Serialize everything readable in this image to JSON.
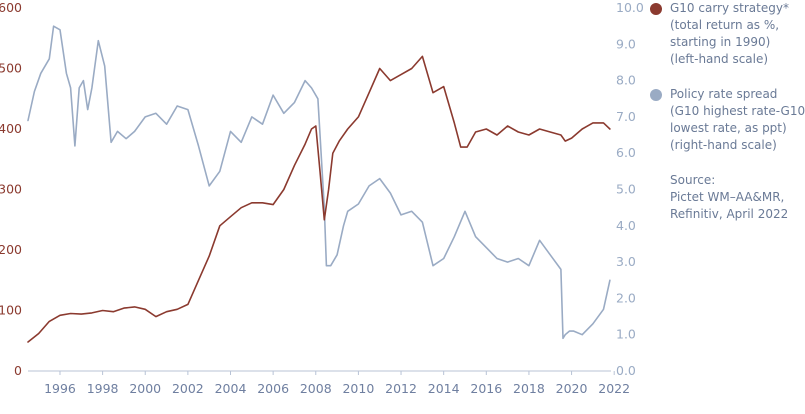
{
  "chart_data": {
    "type": "line",
    "title": "",
    "xlabel": "",
    "left_axis": {
      "ylim": [
        0,
        600
      ],
      "ticks": [
        "0",
        "100",
        "200",
        "300",
        "400",
        "500",
        "600"
      ],
      "color": "#8b3a2f"
    },
    "right_axis": {
      "ylim": [
        0,
        10
      ],
      "ticks": [
        "0.0",
        "1.0",
        "2.0",
        "3.0",
        "4.0",
        "5.0",
        "6.0",
        "7.0",
        "8.0",
        "9.0",
        "10.0"
      ],
      "color": "#9aabc4"
    },
    "x_ticks": [
      "1996",
      "1998",
      "2000",
      "2002",
      "2004",
      "2006",
      "2008",
      "2010",
      "2012",
      "2014",
      "2016",
      "2018",
      "2020",
      "2022"
    ],
    "xlim": [
      1995.0,
      2022.35
    ],
    "grid": false,
    "legend_position": "right",
    "series": [
      {
        "name": "G10 carry strategy",
        "axis": "left",
        "color": "#8b3a2f",
        "x": [
          1995.0,
          1995.5,
          1996.0,
          1996.5,
          1997.0,
          1997.5,
          1998.0,
          1998.5,
          1999.0,
          1999.5,
          2000.0,
          2000.5,
          2001.0,
          2001.5,
          2002.0,
          2002.5,
          2003.0,
          2003.5,
          2004.0,
          2004.5,
          2005.0,
          2005.5,
          2006.0,
          2006.5,
          2007.0,
          2007.5,
          2008.0,
          2008.3,
          2008.5,
          2008.7,
          2008.9,
          2009.1,
          2009.3,
          2009.6,
          2010.0,
          2010.5,
          2011.0,
          2011.5,
          2012.0,
          2012.5,
          2013.0,
          2013.5,
          2014.0,
          2014.5,
          2015.0,
          2015.3,
          2015.6,
          2016.0,
          2016.5,
          2017.0,
          2017.5,
          2018.0,
          2018.5,
          2019.0,
          2019.5,
          2020.0,
          2020.2,
          2020.5,
          2021.0,
          2021.5,
          2022.0,
          2022.3
        ],
        "values": [
          48,
          62,
          82,
          92,
          95,
          94,
          96,
          100,
          98,
          104,
          106,
          102,
          90,
          98,
          102,
          110,
          150,
          190,
          240,
          255,
          270,
          278,
          278,
          275,
          300,
          340,
          375,
          400,
          405,
          330,
          250,
          300,
          360,
          380,
          400,
          420,
          460,
          500,
          480,
          490,
          500,
          520,
          460,
          470,
          410,
          370,
          370,
          395,
          400,
          390,
          405,
          395,
          390,
          400,
          395,
          390,
          380,
          385,
          400,
          410,
          410,
          400
        ]
      },
      {
        "name": "Policy rate spread",
        "axis": "right",
        "color": "#9aabc4",
        "x": [
          1995.0,
          1995.3,
          1995.6,
          1996.0,
          1996.2,
          1996.5,
          1996.8,
          1997.0,
          1997.2,
          1997.4,
          1997.6,
          1997.8,
          1998.0,
          1998.3,
          1998.6,
          1998.9,
          1999.2,
          1999.6,
          2000.0,
          2000.5,
          2001.0,
          2001.5,
          2002.0,
          2002.5,
          2003.0,
          2003.5,
          2004.0,
          2004.5,
          2005.0,
          2005.5,
          2006.0,
          2006.5,
          2007.0,
          2007.5,
          2008.0,
          2008.3,
          2008.6,
          2008.9,
          2009.0,
          2009.2,
          2009.5,
          2009.8,
          2010.0,
          2010.5,
          2011.0,
          2011.5,
          2012.0,
          2012.5,
          2013.0,
          2013.5,
          2014.0,
          2014.5,
          2015.0,
          2015.5,
          2016.0,
          2016.5,
          2017.0,
          2017.5,
          2018.0,
          2018.5,
          2019.0,
          2019.5,
          2020.0,
          2020.1,
          2020.2,
          2020.4,
          2020.6,
          2021.0,
          2021.5,
          2022.0,
          2022.3
        ],
        "values": [
          6.9,
          7.7,
          8.2,
          8.6,
          9.5,
          9.4,
          8.2,
          7.8,
          6.2,
          7.8,
          8.0,
          7.2,
          7.8,
          9.1,
          8.4,
          6.3,
          6.6,
          6.4,
          6.6,
          7.0,
          7.1,
          6.8,
          7.3,
          7.2,
          6.2,
          5.1,
          5.5,
          6.6,
          6.3,
          7.0,
          6.8,
          7.6,
          7.1,
          7.4,
          8.0,
          7.8,
          7.5,
          4.5,
          2.9,
          2.9,
          3.2,
          4.0,
          4.4,
          4.6,
          5.1,
          5.3,
          4.9,
          4.3,
          4.4,
          4.1,
          2.9,
          3.1,
          3.7,
          4.4,
          3.7,
          3.4,
          3.1,
          3.0,
          3.1,
          2.9,
          3.6,
          3.2,
          2.8,
          0.9,
          1.0,
          1.1,
          1.1,
          1.0,
          1.3,
          1.7,
          2.5
        ]
      }
    ]
  },
  "legend": {
    "items": [
      {
        "color": "#8b3a2f",
        "lines": [
          "G10 carry strategy*",
          "(total return as %,",
          "starting in 1990)",
          "(left-hand scale)"
        ]
      },
      {
        "color": "#9aabc4",
        "lines": [
          "Policy rate spread",
          "(G10 highest rate-G10",
          "lowest rate, as ppt)",
          "(right-hand scale)"
        ]
      }
    ],
    "source_lines": [
      "Source:",
      "Pictet WM–AA&MR,",
      "Refinitiv, April 2022"
    ]
  }
}
